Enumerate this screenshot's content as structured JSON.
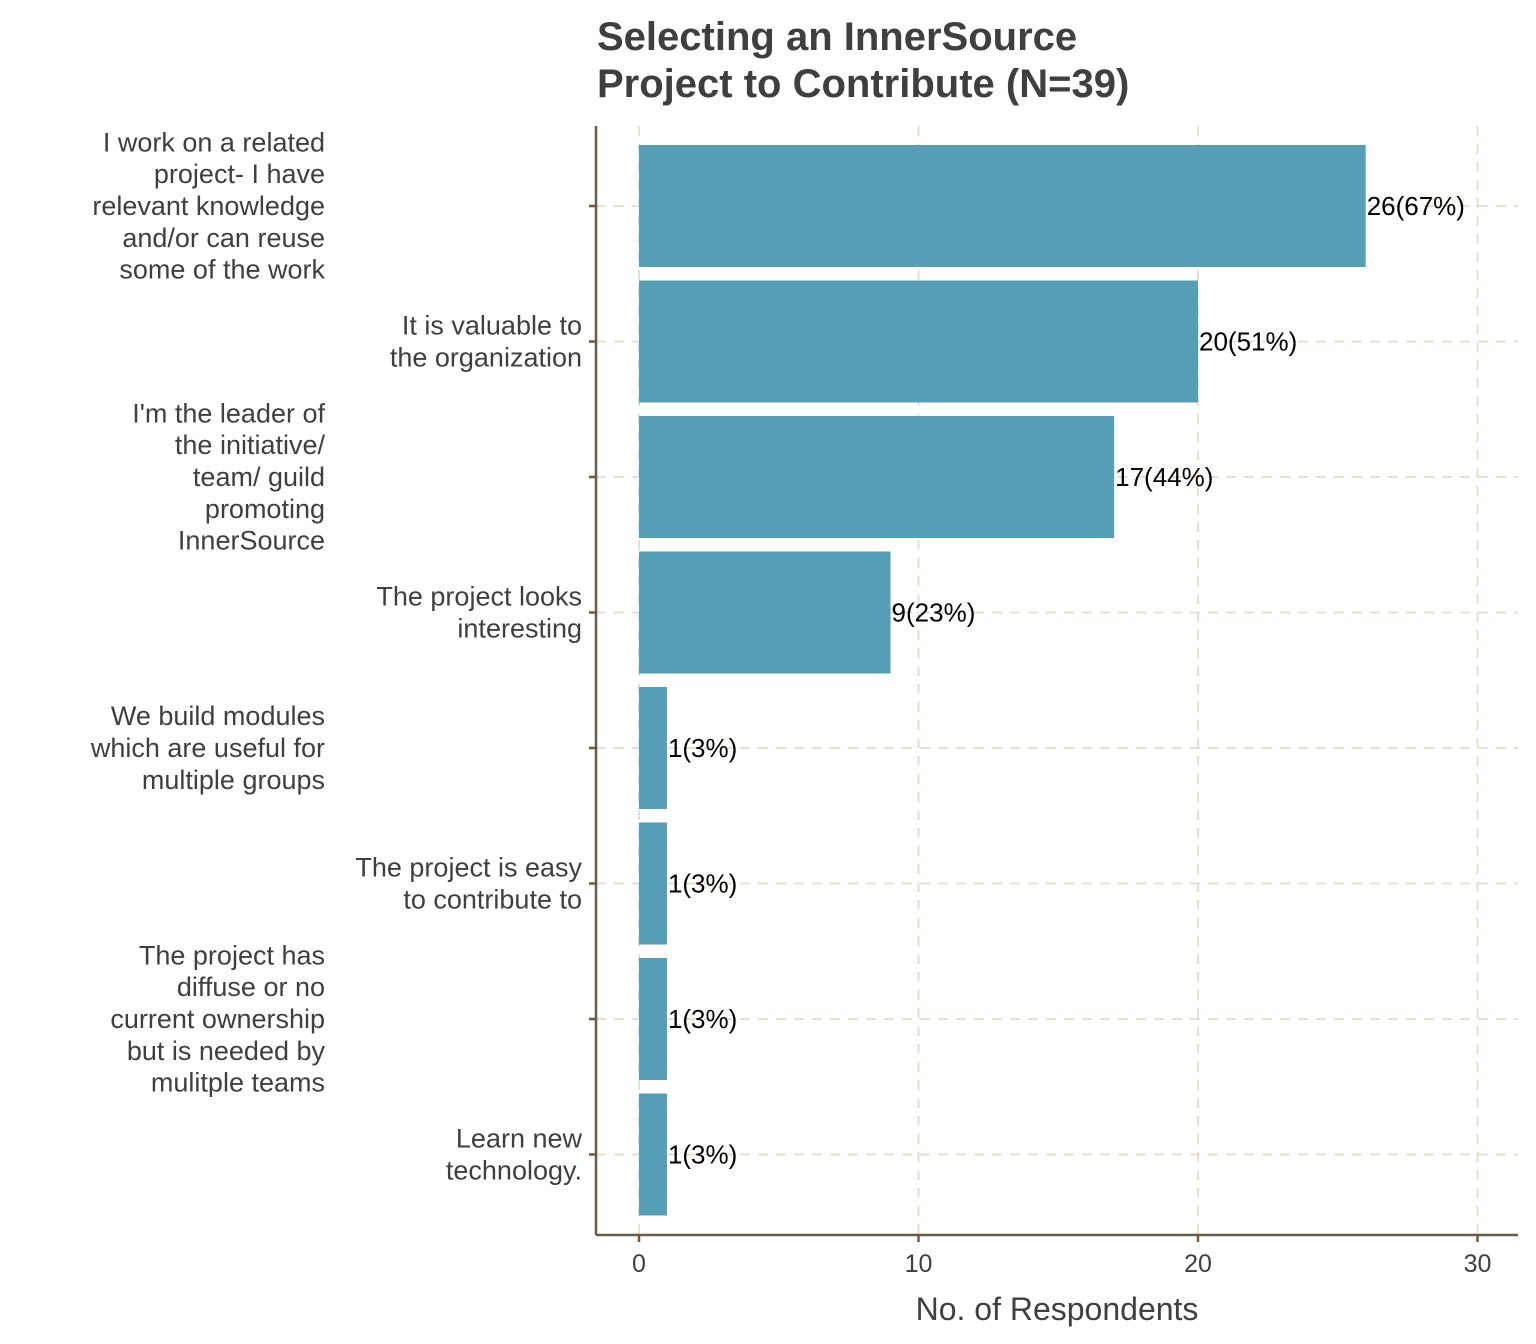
{
  "chart_data": {
    "type": "bar",
    "orientation": "horizontal",
    "title": [
      "Selecting an InnerSource",
      "Project to Contribute (N=39)"
    ],
    "xlabel": "No. of Respondents",
    "ylabel": "",
    "xlim": [
      0,
      30
    ],
    "xticks": [
      0,
      10,
      20,
      30
    ],
    "grid": true,
    "categories": [
      {
        "lines": [
          "I work on a related",
          "project- I have",
          "relevant knowledge",
          "and/or can reuse",
          "some of the work"
        ],
        "align": "far"
      },
      {
        "lines": [
          "It is valuable to",
          "the organization"
        ],
        "align": "near"
      },
      {
        "lines": [
          "I'm the leader of",
          "the initiative/",
          "team/ guild",
          "promoting",
          "InnerSource"
        ],
        "align": "far"
      },
      {
        "lines": [
          "The project looks",
          "interesting"
        ],
        "align": "near"
      },
      {
        "lines": [
          "We build modules",
          "which are useful for",
          "multiple groups"
        ],
        "align": "far"
      },
      {
        "lines": [
          "The project is easy",
          "to contribute to"
        ],
        "align": "near"
      },
      {
        "lines": [
          "The project has",
          "diffuse or no",
          "current ownership",
          "but is needed by",
          "mulitple teams"
        ],
        "align": "far"
      },
      {
        "lines": [
          "Learn new",
          "technology."
        ],
        "align": "near"
      }
    ],
    "values": [
      26,
      20,
      17,
      9,
      1,
      1,
      1,
      1
    ],
    "labels": [
      "26(67%)",
      "20(51%)",
      "17(44%)",
      "9(23%)",
      "1(3%)",
      "1(3%)",
      "1(3%)",
      "1(3%)"
    ],
    "colors": {
      "bar": "#559eb6",
      "grid": "#e8ded2",
      "axis": "#6b5a44",
      "text": "#3f3f3f"
    }
  }
}
